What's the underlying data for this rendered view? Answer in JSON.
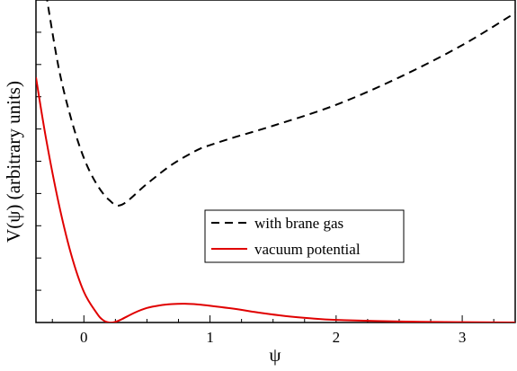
{
  "chart_data": {
    "type": "line",
    "xlabel": "ψ",
    "ylabel": "V(ψ) (arbitrary units)",
    "xlim": [
      -0.38,
      3.42
    ],
    "ylim": [
      0,
      10
    ],
    "x_ticks": [
      0,
      1,
      2,
      3
    ],
    "x_tick_labels": [
      "0",
      "1",
      "2",
      "3"
    ],
    "y_tick_count": 11,
    "y_tick_labels_shown": false,
    "grid": false,
    "legend_placement": "center-right",
    "series": [
      {
        "name": "with brane gas",
        "color": "#000000",
        "style": "dashed",
        "x": [
          -0.3,
          -0.2,
          -0.1,
          0.0,
          0.1,
          0.2,
          0.3,
          0.5,
          0.7,
          0.9,
          1.0,
          1.2,
          1.5,
          2.0,
          2.5,
          3.0,
          3.42
        ],
        "y": [
          10.2,
          7.9,
          6.3,
          5.1,
          4.3,
          3.8,
          3.65,
          4.3,
          4.9,
          5.35,
          5.5,
          5.75,
          6.1,
          6.75,
          7.6,
          8.6,
          9.6
        ]
      },
      {
        "name": "vacuum potential",
        "color": "#e00000",
        "style": "solid",
        "x": [
          -0.38,
          -0.3,
          -0.2,
          -0.1,
          0.0,
          0.1,
          0.15,
          0.2,
          0.25,
          0.3,
          0.4,
          0.5,
          0.6,
          0.7,
          0.8,
          0.9,
          1.0,
          1.2,
          1.4,
          1.6,
          1.8,
          2.0,
          2.5,
          3.0,
          3.42
        ],
        "y": [
          7.6,
          5.7,
          3.7,
          2.1,
          0.95,
          0.3,
          0.08,
          0.0,
          0.02,
          0.1,
          0.3,
          0.45,
          0.53,
          0.57,
          0.58,
          0.56,
          0.52,
          0.42,
          0.3,
          0.2,
          0.13,
          0.08,
          0.03,
          0.01,
          0.0
        ]
      }
    ]
  }
}
